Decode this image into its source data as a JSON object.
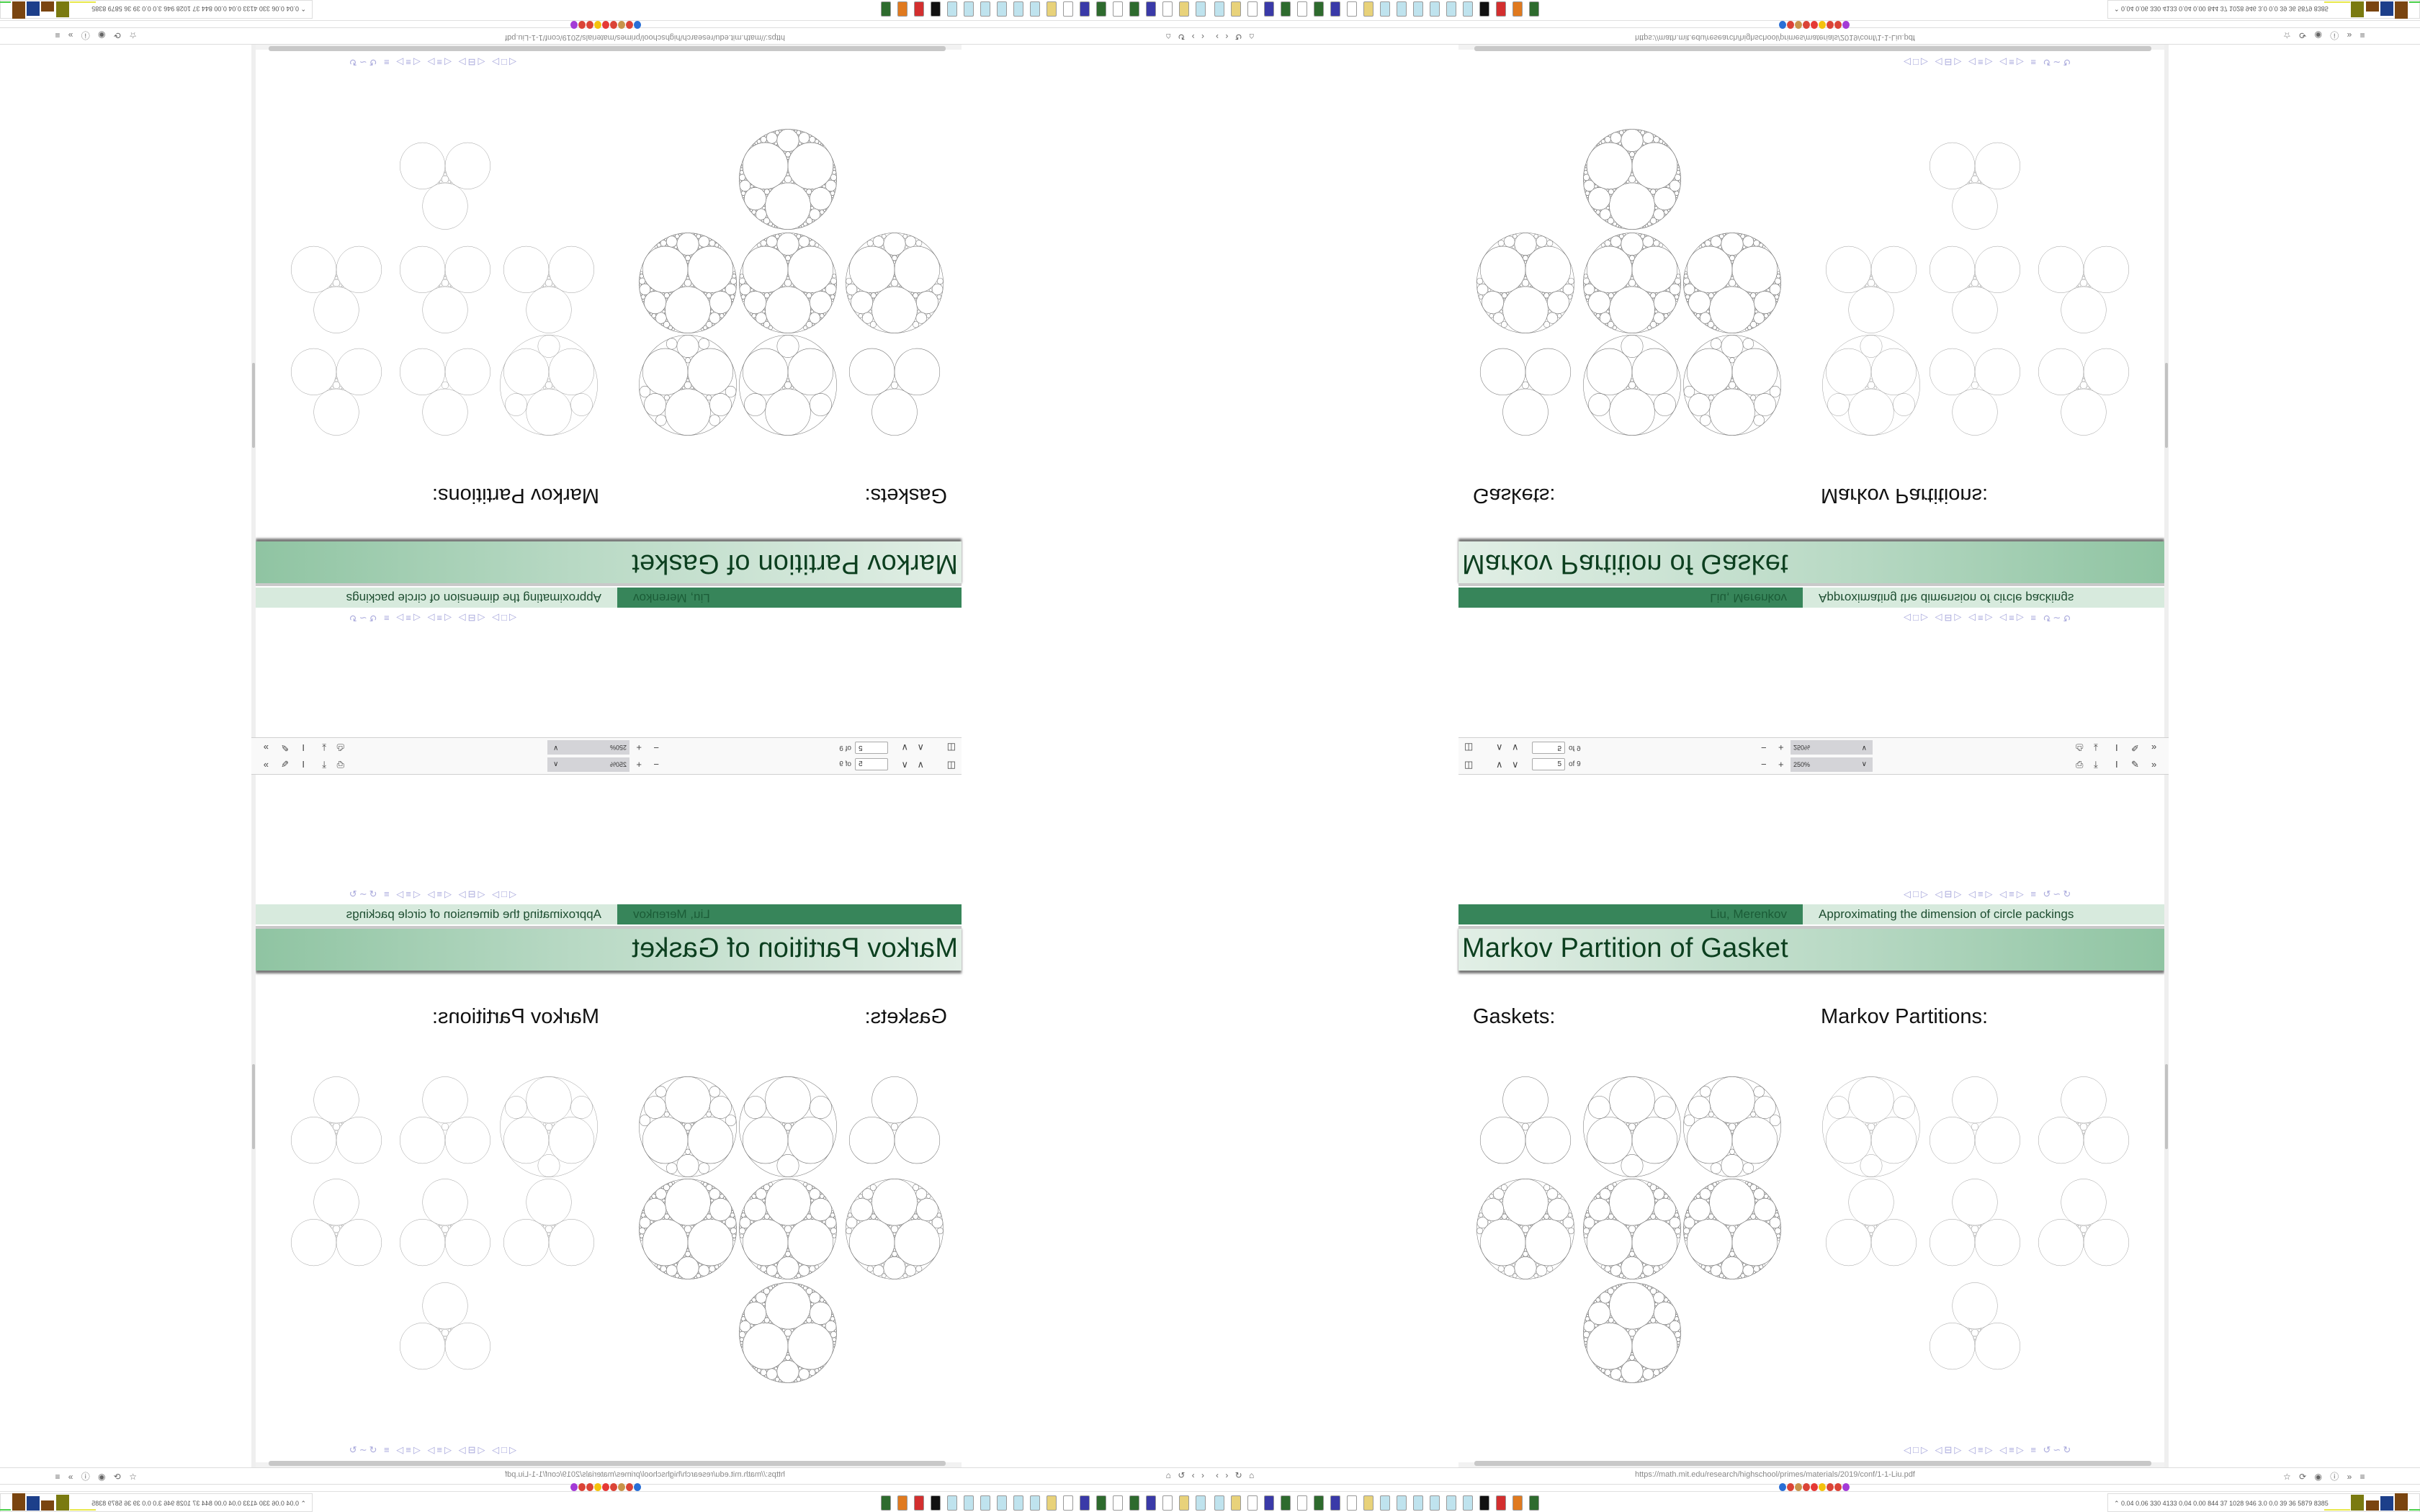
{
  "viewer": {
    "toolbar": {
      "page_number": "5",
      "page_total": "of 9",
      "zoom": "250%",
      "zoom_out": "−",
      "zoom_in": "+",
      "prev_page": "∧",
      "next_page": "∨",
      "more": "»"
    },
    "slide": {
      "author": "Liu, Merenkov",
      "short_title": "Approximating the dimension of circle packings",
      "frame_title": "Markov Partition of Gasket",
      "left_heading": "Gaskets:",
      "right_heading": "Markov Partitions:"
    }
  },
  "browser": {
    "url": "https://math.mit.edu/research/highschool/primes/materials/2019/conf/1-1-Liu.pdf"
  },
  "taskbar": {
    "stats": "0.04 0.06 330 4133 0.04 0.00 844 37 1028 946 3.0 0.0 39 36 5879 8385"
  },
  "colors": {
    "beamer_dark_green": "#37855a",
    "beamer_light_green": "#d7eadd",
    "title_gradient_end": "#8fc4a2",
    "nav_symbols": "#a9a9dc"
  },
  "mirror_layout": "four quadrants: top-left rotated 180°, top-right flipped vertically, bottom-left flipped horizontally, bottom-right normal"
}
